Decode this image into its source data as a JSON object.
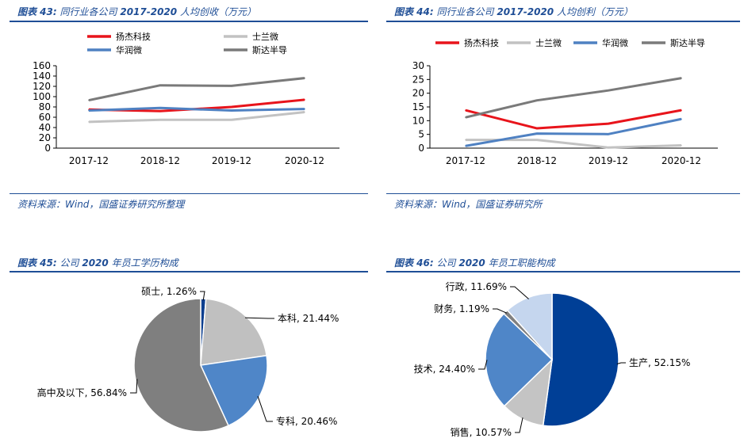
{
  "panels": {
    "p43": {
      "prefix": "图表 43:",
      "title_a": "同行业各公司 ",
      "title_b": "2017-2020",
      "title_c": " 人均创收（万元）",
      "source": "资料来源：Wind，国盛证券研究所整理"
    },
    "p44": {
      "prefix": "图表 44:",
      "title_a": "同行业各公司 ",
      "title_b": "2017-2020",
      "title_c": " 人均创利（万元）",
      "source": "资料来源：Wind，国盛证券研究所"
    },
    "p45": {
      "prefix": "图表 45:",
      "title_a": "公司 ",
      "title_b": "2020",
      "title_c": " 年员工学历构成"
    },
    "p46": {
      "prefix": "图表 46:",
      "title_a": "公司 ",
      "title_b": "2020",
      "title_c": " 年员工职能构成"
    }
  },
  "chart_data": [
    {
      "type": "line",
      "categories": [
        "2017-12",
        "2018-12",
        "2019-12",
        "2020-12"
      ],
      "ylim": [
        0,
        160
      ],
      "yticks": [
        0,
        20,
        40,
        60,
        80,
        100,
        120,
        140,
        160
      ],
      "legend_placement": "top",
      "series": [
        {
          "name": "扬杰科技",
          "color": "#e8141b",
          "values": [
            75,
            72,
            80,
            94
          ]
        },
        {
          "name": "士兰微",
          "color": "#c2c2c2",
          "values": [
            51,
            55,
            55,
            70
          ]
        },
        {
          "name": "华润微",
          "color": "#4f81c2",
          "values": [
            73,
            78,
            73,
            76
          ]
        },
        {
          "name": "斯达半导",
          "color": "#7a7a7a",
          "values": [
            93,
            122,
            121,
            136
          ]
        }
      ]
    },
    {
      "type": "line",
      "categories": [
        "2017-12",
        "2018-12",
        "2019-12",
        "2020-12"
      ],
      "ylim": [
        0,
        30
      ],
      "yticks": [
        0,
        5,
        10,
        15,
        20,
        25,
        30
      ],
      "legend_placement": "top",
      "series": [
        {
          "name": "扬杰科技",
          "color": "#e8141b",
          "values": [
            13.8,
            7.2,
            8.9,
            13.8
          ]
        },
        {
          "name": "士兰微",
          "color": "#c2c2c2",
          "values": [
            3.0,
            3.0,
            0.2,
            1.0
          ]
        },
        {
          "name": "华润微",
          "color": "#4f81c2",
          "values": [
            0.8,
            5.3,
            5.1,
            10.6
          ]
        },
        {
          "name": "斯达半导",
          "color": "#7a7a7a",
          "values": [
            11.2,
            17.4,
            21.0,
            25.5
          ]
        }
      ]
    },
    {
      "type": "pie",
      "slices": [
        {
          "label": "硕士",
          "pct": "1.26%",
          "value": 1.26,
          "color": "#0d3f8f"
        },
        {
          "label": "本科",
          "pct": "21.44%",
          "value": 21.44,
          "color": "#c0c0c0"
        },
        {
          "label": "专科",
          "pct": "20.46%",
          "value": 20.46,
          "color": "#4f86c8"
        },
        {
          "label": "高中及以下",
          "pct": "56.84%",
          "value": 56.84,
          "color": "#7f7f7f"
        }
      ]
    },
    {
      "type": "pie",
      "slices": [
        {
          "label": "生产",
          "pct": "52.15%",
          "value": 52.15,
          "color": "#003f96"
        },
        {
          "label": "销售",
          "pct": "10.57%",
          "value": 10.57,
          "color": "#c4c4c4"
        },
        {
          "label": "技术",
          "pct": "24.40%",
          "value": 24.4,
          "color": "#4f86c8"
        },
        {
          "label": "财务",
          "pct": "1.19%",
          "value": 1.19,
          "color": "#808080"
        },
        {
          "label": "行政",
          "pct": "11.69%",
          "value": 11.69,
          "color": "#c5d6ee"
        }
      ]
    }
  ]
}
